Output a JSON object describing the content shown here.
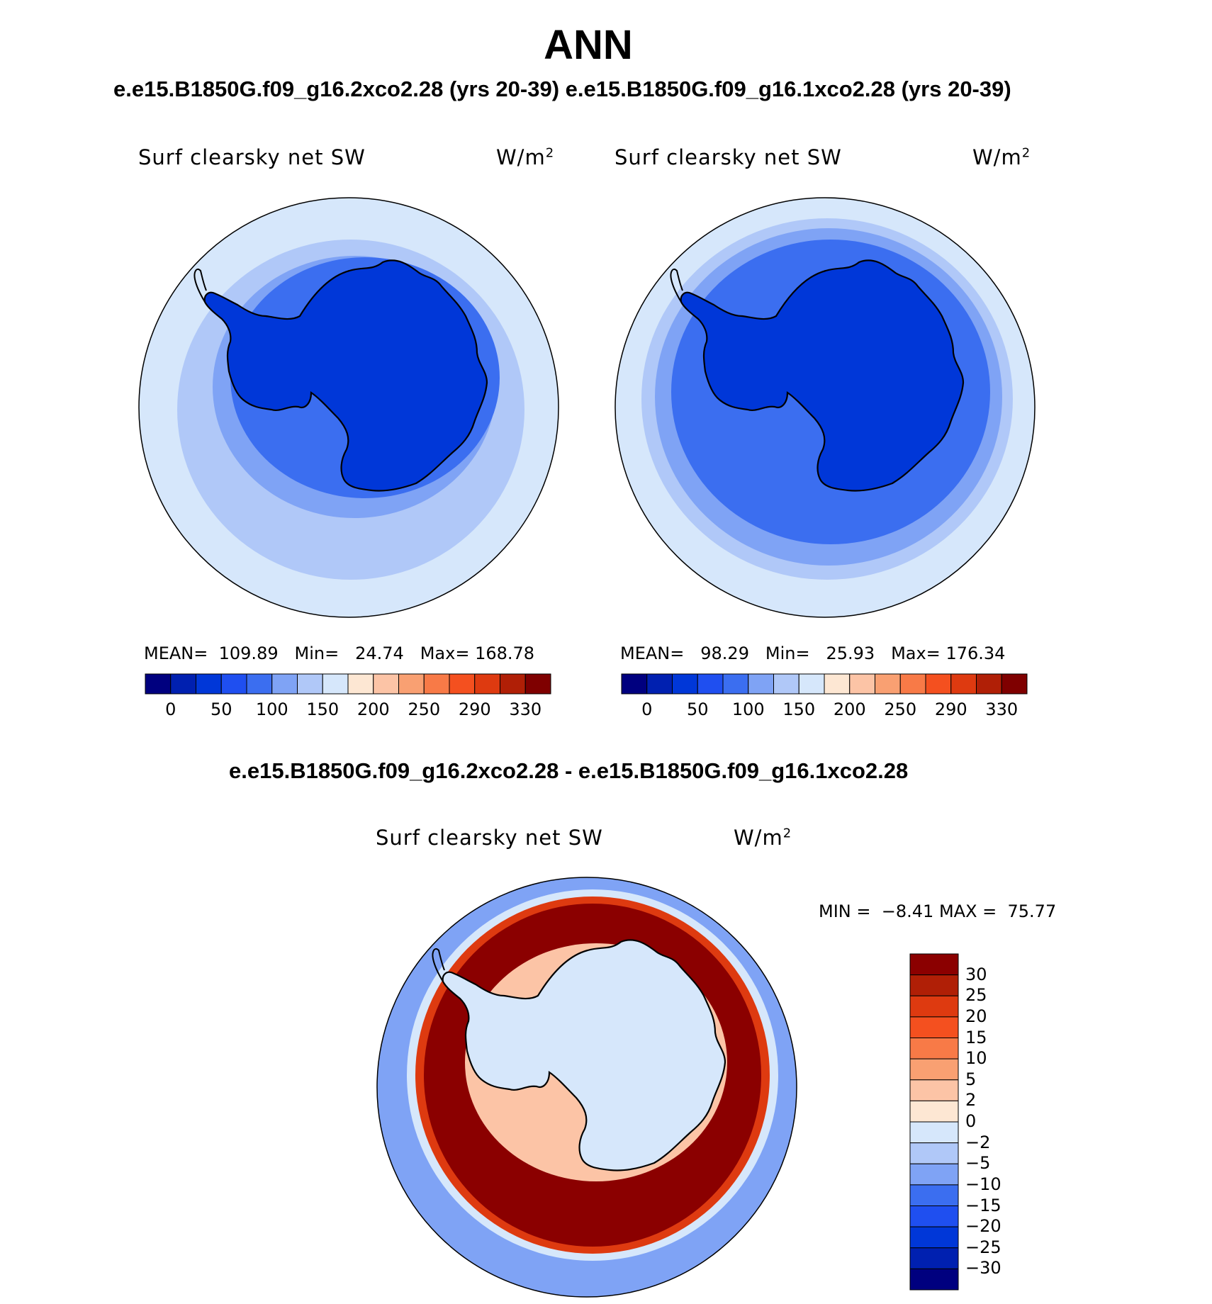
{
  "page_title": "ANN",
  "header_subtitle": "e.e15.B1850G.f09_g16.2xco2.28 (yrs 20-39) e.e15.B1850G.f09_g16.1xco2.28 (yrs 20-39)",
  "diff_title": "e.e15.B1850G.f09_g16.2xco2.28 - e.e15.B1850G.f09_g16.1xco2.28",
  "panels": [
    {
      "variable": "Surf clearsky net SW",
      "units": "W/m",
      "units_exp": "2",
      "mean_label": "MEAN=",
      "mean": "109.89",
      "min_label": "Min=",
      "min": "24.74",
      "max_label": "Max=",
      "max": "168.78"
    },
    {
      "variable": "Surf clearsky net SW",
      "units": "W/m",
      "units_exp": "2",
      "mean_label": "MEAN=",
      "mean": "98.29",
      "min_label": "Min=",
      "min": "25.93",
      "max_label": "Max=",
      "max": "176.34"
    },
    {
      "variable": "Surf clearsky net SW",
      "units": "W/m",
      "units_exp": "2",
      "min_label": "MIN =",
      "min": "−8.41",
      "max_label": "MAX =",
      "max": "75.77"
    }
  ],
  "abs_colorbar": {
    "tick_labels": [
      "0",
      "50",
      "100",
      "150",
      "200",
      "250",
      "290",
      "330"
    ],
    "colors": [
      "#00007f",
      "#0020b0",
      "#0037d8",
      "#1f4ff0",
      "#3b6ef0",
      "#7fa3f5",
      "#b0c8f8",
      "#d6e7fb",
      "#fde7d3",
      "#fcc4a6",
      "#f9a072",
      "#f87a47",
      "#f4501f",
      "#de3a10",
      "#b01f06",
      "#7f0000"
    ]
  },
  "diff_colorbar": {
    "tick_labels": [
      "30",
      "25",
      "20",
      "15",
      "10",
      "5",
      "2",
      "0",
      "−2",
      "−5",
      "−10",
      "−15",
      "−20",
      "−25",
      "−30"
    ],
    "colors_top_to_bottom": [
      "#8b0000",
      "#b01f06",
      "#de3a10",
      "#f4501f",
      "#f87a47",
      "#f9a072",
      "#fcc4a6",
      "#fde7d3",
      "#d6e7fb",
      "#b0c8f8",
      "#7fa3f5",
      "#3b6ef0",
      "#1f4ff0",
      "#0037d8",
      "#0020b0",
      "#00007f"
    ]
  },
  "map_colors": {
    "ocean_far": "#d6e7fb",
    "ocean_mid": "#b0c8f8",
    "ocean_near": "#7fa3f5",
    "ice_edge": "#3b6ef0",
    "land": "#0037d8",
    "diff_outer": "#7fa3f5",
    "diff_ring_light": "#d6e7fb",
    "diff_ring": "#8b0000",
    "diff_ring_edge": "#de3a10",
    "diff_coast": "#fcc4a6",
    "diff_interior": "#d6e7fb"
  }
}
